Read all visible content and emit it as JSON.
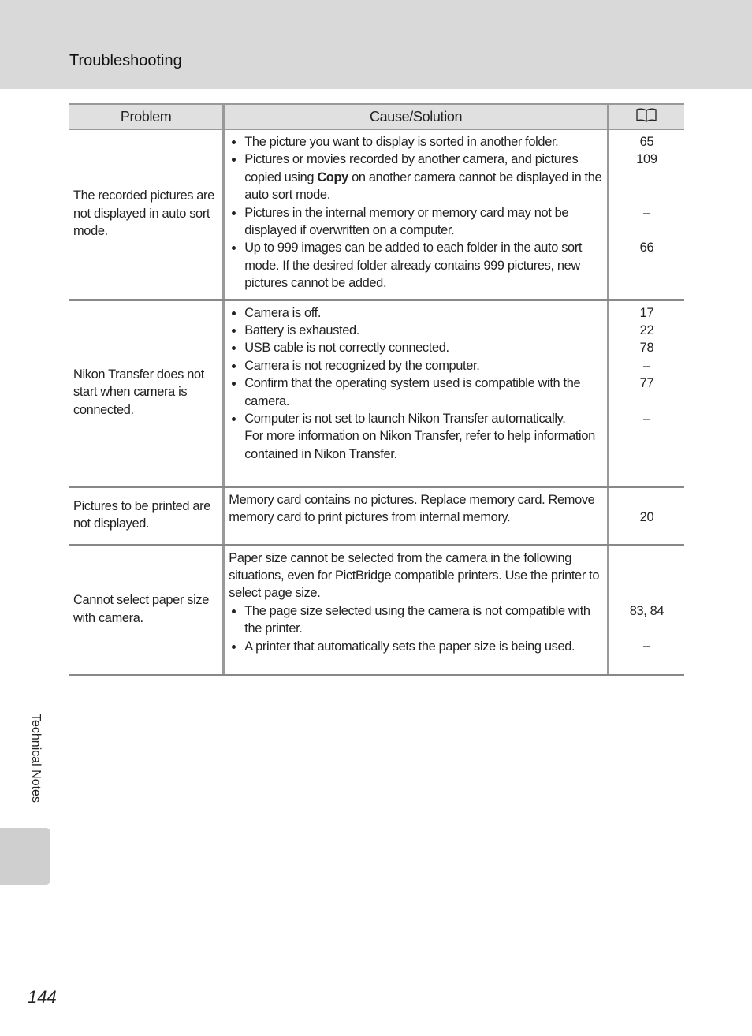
{
  "header": {
    "title": "Troubleshooting"
  },
  "table": {
    "columns": {
      "problem": "Problem",
      "cause": "Cause/Solution",
      "ref_icon": "book-icon"
    },
    "rows": [
      {
        "problem": "The recorded pictures are not displayed in auto sort mode.",
        "bullets": [
          "The picture you want to display is sorted in another folder.",
          "Pictures or movies recorded by another camera, and pictures copied using ",
          "Pictures in the internal memory or memory card may not be displayed if overwritten on a computer.",
          "Up to 999 images can be added to each folder in the auto sort mode. If the desired folder already contains 999 pictures, new pictures cannot be added."
        ],
        "bold_word": "Copy",
        "bullet2_tail": " on another camera cannot be displayed in the auto sort mode.",
        "refs": [
          "65",
          "109",
          "",
          "",
          "–",
          "",
          "66"
        ]
      },
      {
        "problem": "Nikon Transfer does not start when camera is connected.",
        "bullets": [
          "Camera is off.",
          "Battery is exhausted.",
          "USB cable is not correctly connected.",
          "Camera is not recognized by the computer.",
          "Confirm that the operating system used is compatible with the camera.",
          "Computer is not set to launch Nikon Transfer automatically."
        ],
        "note": "For more information on Nikon Transfer, refer to help information contained in Nikon Transfer.",
        "refs": [
          "17",
          "22",
          "78",
          "–",
          "77",
          "",
          "–"
        ]
      },
      {
        "problem": "Pictures to be printed are not displayed.",
        "text": "Memory card contains no pictures. Replace memory card. Remove memory card to print pictures from internal memory.",
        "refs": [
          "",
          "20"
        ]
      },
      {
        "problem": "Cannot select paper size with camera.",
        "text": "Paper size cannot be selected from the camera in the following situations, even for PictBridge compatible printers. Use the printer to select page size.",
        "bullets": [
          "The page size selected using the camera is not compatible with the printer.",
          "A printer that automatically sets the paper size is being used."
        ],
        "refs": [
          "",
          "",
          "",
          "83, 84",
          "",
          "–"
        ]
      }
    ]
  },
  "sidebar": {
    "section": "Technical Notes"
  },
  "footer": {
    "page_number": "144"
  }
}
